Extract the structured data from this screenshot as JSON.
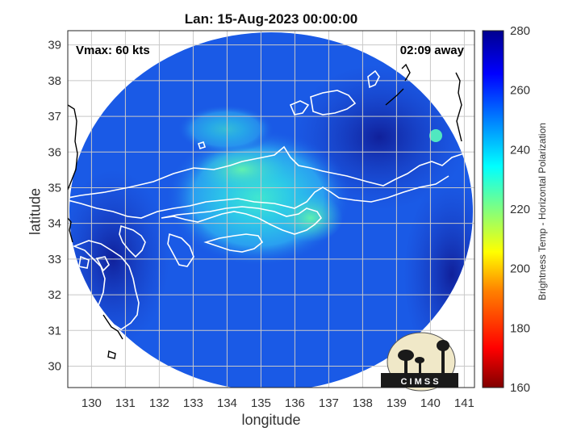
{
  "title": "Lan: 15-Aug-2023 00:00:00",
  "vmax_label": "Vmax: 60 kts",
  "time_label": "02:09 away",
  "xlabel": "longitude",
  "ylabel": "latitude",
  "colorbar_label": "Brightness Temp - Horizontal Polarization",
  "logo_text": "C I M S S",
  "chart_data": {
    "type": "heatmap",
    "x_ticks": [
      130,
      131,
      132,
      133,
      134,
      135,
      136,
      137,
      138,
      139,
      140,
      141
    ],
    "y_ticks": [
      30,
      31,
      32,
      33,
      34,
      35,
      36,
      37,
      38,
      39
    ],
    "xlim": [
      129.3,
      141.3
    ],
    "ylim": [
      29.4,
      39.4
    ],
    "colorbar": {
      "ticks": [
        160,
        180,
        200,
        220,
        240,
        260,
        280
      ],
      "range": [
        160,
        280
      ]
    },
    "colormap": [
      "#800000",
      "#ff0000",
      "#ff8000",
      "#ffff00",
      "#80ff80",
      "#00ffff",
      "#0080ff",
      "#0000ff",
      "#00008f"
    ],
    "swath_fill_color": "#1a5ae6",
    "grid": true
  }
}
